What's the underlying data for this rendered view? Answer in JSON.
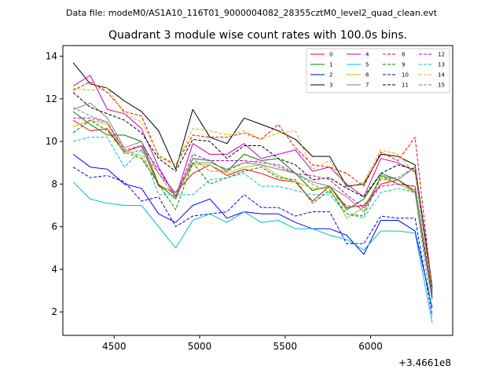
{
  "figure": {
    "suptitle": "Data file: modeM0/AS1A10_116T01_9000004082_28355cztM0_level2_quad_clean.evt",
    "title": "Quadrant 3 module wise count rates with 100.0s bins.",
    "offset_label": "+3.4661e8"
  },
  "chart_data": {
    "type": "line",
    "title": "Quadrant 3 module wise count rates with 100.0s bins.",
    "xlabel": "",
    "ylabel": "",
    "x_offset": "+3.4661e8",
    "xlim": [
      4200,
      6480
    ],
    "ylim": [
      0.9,
      14.5
    ],
    "xticks": [
      4500,
      5000,
      5500,
      6000
    ],
    "yticks": [
      2,
      4,
      6,
      8,
      10,
      12,
      14
    ],
    "x": [
      4260,
      4360,
      4460,
      4560,
      4660,
      4760,
      4860,
      4960,
      5060,
      5160,
      5260,
      5360,
      5460,
      5560,
      5660,
      5760,
      5860,
      5960,
      6060,
      6160,
      6260,
      6360
    ],
    "legend_position": "upper right",
    "series": [
      {
        "name": "0",
        "color": "#ff0000",
        "dash": "solid",
        "values": [
          11.0,
          10.5,
          10.6,
          9.5,
          9.8,
          7.9,
          7.6,
          8.5,
          8.9,
          8.4,
          8.7,
          8.5,
          8.2,
          8.1,
          7.2,
          7.9,
          6.9,
          7.0,
          8.0,
          8.2,
          7.6,
          2.6
        ]
      },
      {
        "name": "1",
        "color": "#008000",
        "dash": "solid",
        "values": [
          11.4,
          10.8,
          10.3,
          10.3,
          10.0,
          8.0,
          7.3,
          9.2,
          9.1,
          8.6,
          9.4,
          9.1,
          9.2,
          8.5,
          7.7,
          7.9,
          6.8,
          7.3,
          8.5,
          8.2,
          7.7,
          2.7
        ]
      },
      {
        "name": "2",
        "color": "#0000ff",
        "dash": "solid",
        "values": [
          9.4,
          8.8,
          8.7,
          8.0,
          7.8,
          6.6,
          6.2,
          7.0,
          7.3,
          6.4,
          6.7,
          6.6,
          6.6,
          6.2,
          5.9,
          5.9,
          5.6,
          4.7,
          6.3,
          6.3,
          5.8,
          2.2
        ]
      },
      {
        "name": "3",
        "color": "#000000",
        "dash": "solid",
        "values": [
          13.7,
          12.7,
          12.5,
          11.9,
          11.4,
          10.5,
          8.7,
          11.5,
          10.2,
          9.9,
          11.1,
          10.8,
          10.5,
          10.1,
          9.3,
          9.3,
          7.9,
          8.0,
          9.4,
          9.3,
          8.9,
          3.2
        ]
      },
      {
        "name": "4",
        "color": "#c000c0",
        "dash": "solid",
        "values": [
          12.6,
          13.1,
          11.5,
          11.3,
          10.6,
          8.8,
          7.4,
          9.9,
          9.4,
          9.4,
          9.9,
          9.2,
          9.4,
          9.6,
          8.6,
          8.8,
          8.0,
          7.4,
          9.2,
          9.0,
          8.6,
          3.0
        ]
      },
      {
        "name": "5",
        "color": "#00c0c0",
        "dash": "solid",
        "values": [
          8.1,
          7.3,
          7.1,
          7.0,
          7.0,
          6.0,
          5.0,
          6.3,
          6.6,
          6.2,
          6.7,
          6.2,
          6.3,
          5.9,
          5.9,
          5.6,
          5.4,
          4.9,
          5.8,
          5.8,
          5.7,
          1.5
        ]
      },
      {
        "name": "6",
        "color": "#c0c000",
        "dash": "solid",
        "values": [
          10.7,
          11.0,
          10.8,
          9.6,
          9.3,
          8.0,
          7.5,
          8.9,
          8.9,
          8.5,
          8.8,
          8.9,
          8.4,
          8.1,
          7.8,
          7.8,
          6.4,
          6.9,
          8.3,
          8.0,
          7.6,
          2.8
        ]
      },
      {
        "name": "7",
        "color": "#808080",
        "dash": "solid",
        "values": [
          11.5,
          11.8,
          11.1,
          9.7,
          10.0,
          8.5,
          7.6,
          9.0,
          9.0,
          8.7,
          9.0,
          8.9,
          8.7,
          8.5,
          8.1,
          7.9,
          7.4,
          6.7,
          8.4,
          8.2,
          8.8,
          2.9
        ]
      },
      {
        "name": "8",
        "color": "#ff0000",
        "dash": "dashed",
        "values": [
          12.4,
          12.8,
          12.3,
          11.4,
          11.2,
          9.3,
          8.9,
          10.3,
          10.2,
          10.2,
          10.4,
          10.1,
          10.8,
          9.7,
          8.9,
          8.8,
          8.5,
          7.9,
          9.5,
          9.1,
          10.2,
          3.0
        ]
      },
      {
        "name": "9",
        "color": "#008000",
        "dash": "dashed",
        "values": [
          10.4,
          11.0,
          10.5,
          9.5,
          9.2,
          8.0,
          6.8,
          9.0,
          8.0,
          8.3,
          8.6,
          8.8,
          8.3,
          8.2,
          7.1,
          7.7,
          6.6,
          6.5,
          8.4,
          8.0,
          7.9,
          2.6
        ]
      },
      {
        "name": "10",
        "color": "#0000ff",
        "dash": "dashed",
        "values": [
          8.8,
          8.3,
          8.4,
          8.1,
          7.2,
          7.4,
          6.0,
          6.5,
          6.6,
          6.7,
          7.5,
          6.9,
          6.9,
          6.5,
          6.7,
          6.7,
          5.2,
          5.2,
          6.5,
          6.4,
          6.4,
          1.8
        ]
      },
      {
        "name": "11",
        "color": "#000000",
        "dash": "dashed",
        "values": [
          12.3,
          11.6,
          11.3,
          11.0,
          10.4,
          9.2,
          8.6,
          10.1,
          10.0,
          9.2,
          9.8,
          9.8,
          9.2,
          8.9,
          8.2,
          8.3,
          7.8,
          7.4,
          8.5,
          8.9,
          8.7,
          3.1
        ]
      },
      {
        "name": "12",
        "color": "#c000c0",
        "dash": "dashed",
        "values": [
          11.1,
          11.1,
          10.9,
          9.6,
          9.8,
          8.7,
          7.4,
          9.4,
          9.1,
          9.1,
          9.1,
          9.0,
          8.9,
          8.5,
          8.4,
          8.2,
          7.5,
          6.9,
          7.9,
          8.0,
          7.9,
          2.8
        ]
      },
      {
        "name": "13",
        "color": "#00c0c0",
        "dash": "dashed",
        "values": [
          10.0,
          10.2,
          10.2,
          8.8,
          9.6,
          7.5,
          7.5,
          7.5,
          8.2,
          8.3,
          8.5,
          7.9,
          7.9,
          7.7,
          7.5,
          7.5,
          6.6,
          6.4,
          7.6,
          7.8,
          7.6,
          1.9
        ]
      },
      {
        "name": "14",
        "color": "#c0c000",
        "dash": "dashed",
        "values": [
          12.5,
          12.4,
          12.5,
          11.3,
          10.9,
          9.4,
          8.9,
          10.6,
          10.5,
          10.3,
          10.5,
          10.1,
          10.4,
          10.5,
          8.7,
          9.1,
          7.8,
          8.1,
          9.6,
          9.4,
          8.5,
          3.1
        ]
      },
      {
        "name": "15",
        "color": "#808080",
        "dash": "dashed",
        "values": [
          11.6,
          11.2,
          10.9,
          9.4,
          9.6,
          8.5,
          7.3,
          9.2,
          8.6,
          8.6,
          9.0,
          9.1,
          8.8,
          8.5,
          8.0,
          7.6,
          7.0,
          6.9,
          8.2,
          8.3,
          8.8,
          2.9
        ]
      }
    ]
  }
}
